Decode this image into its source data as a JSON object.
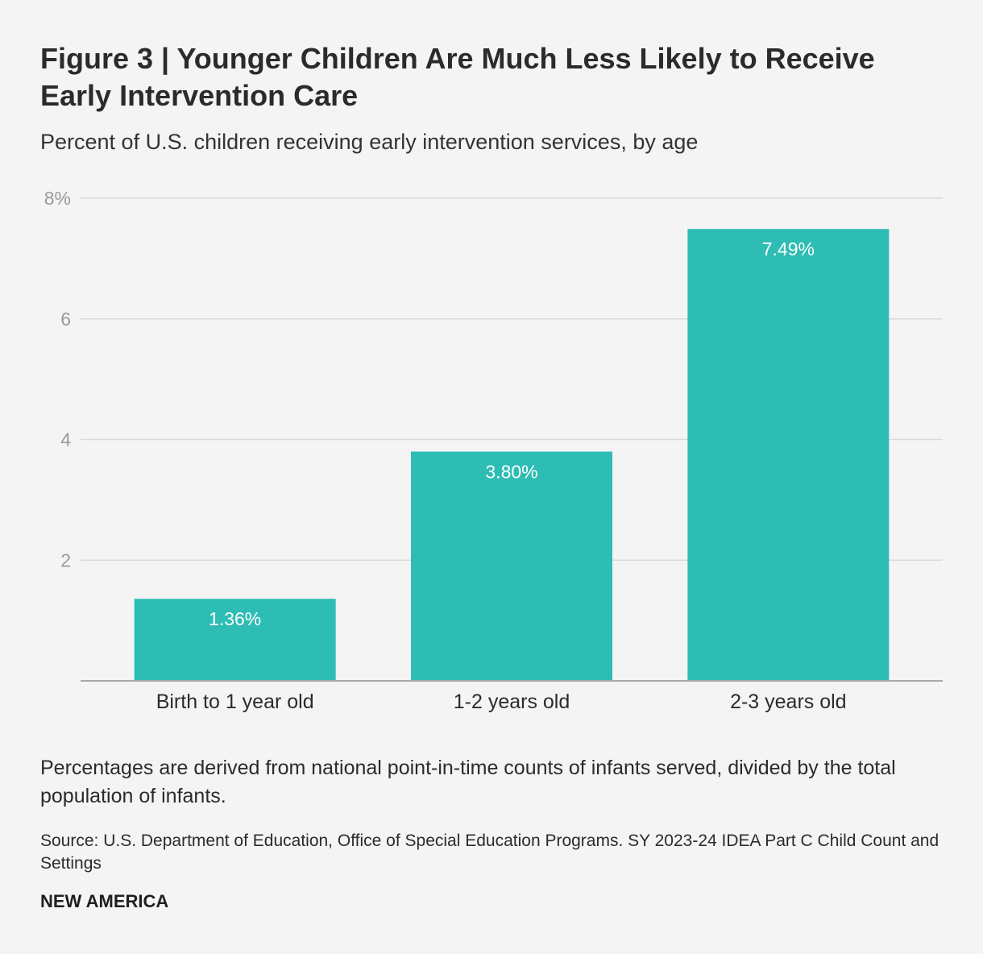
{
  "header": {
    "title": "Figure 3 | Younger Children Are Much Less Likely to Receive Early Intervention Care",
    "subtitle": "Percent of U.S. children receiving early intervention services, by age"
  },
  "chart_data": {
    "type": "bar",
    "categories": [
      "Birth to 1 year old",
      "1-2 years old",
      "2-3 years old"
    ],
    "values": [
      1.36,
      3.8,
      7.49
    ],
    "value_labels": [
      "1.36%",
      "3.80%",
      "7.49%"
    ],
    "ylim": [
      0,
      8
    ],
    "yticks": [
      2,
      4,
      6,
      8
    ],
    "ytick_labels": [
      "2",
      "4",
      "6",
      "8%"
    ],
    "grid": true,
    "bar_color": "#2ebdb4",
    "xlabel": "",
    "ylabel": ""
  },
  "footer": {
    "note": "Percentages are derived from national point-in-time counts of infants served, divided by the total population of infants.",
    "source": "Source: U.S. Department of Education, Office of Special Education Programs. SY 2023-24 IDEA Part C Child Count and Settings",
    "brand": "NEW AMERICA"
  }
}
